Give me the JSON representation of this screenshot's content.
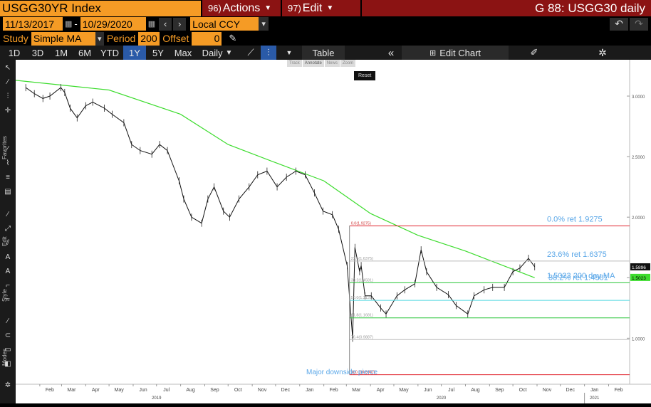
{
  "header": {
    "ticker": "USGG30YR Index",
    "actions_num": "96)",
    "actions": "Actions",
    "edit_num": "97)",
    "edit": "Edit",
    "right_title": "G 88: USGG30 daily"
  },
  "range": {
    "start": "11/13/2017",
    "sep": "-",
    "end": "10/29/2020",
    "currency": "Local CCY"
  },
  "study": {
    "label": "Study",
    "type": "Simple MA",
    "period_label": "Period",
    "period": "200",
    "offset_label": "Offset",
    "offset": "0"
  },
  "toolbar": {
    "periods": [
      "1D",
      "3D",
      "1M",
      "6M",
      "YTD",
      "1Y",
      "5Y",
      "Max"
    ],
    "selected": "1Y",
    "frequency": "Daily",
    "table": "Table",
    "edit_chart": "Edit Chart"
  },
  "mini": {
    "track": "Track",
    "annotate": "Annotate",
    "news": "News",
    "zoom": "Zoom",
    "reset": "Reset"
  },
  "side_labels": {
    "favorites": "Favorites",
    "edit": "Edit",
    "style": "Style",
    "modes": "Modes"
  },
  "colors": {
    "accent": "#f59b25",
    "red_header": "#8b1313",
    "ma": "#3ddc2e",
    "fib_blue": "#5aa7e8",
    "hl_red": "#e0202a"
  },
  "chart_data": {
    "type": "line",
    "y_ticks": [
      "3.0000",
      "2.5000",
      "2.0000",
      "1.5000",
      "1.0000"
    ],
    "ylim": [
      0.62,
      3.3
    ],
    "x_months": [
      "Feb",
      "Mar",
      "Apr",
      "May",
      "Jun",
      "Jul",
      "Aug",
      "Sep",
      "Oct",
      "Nov",
      "Dec",
      "Jan",
      "Feb",
      "Mar",
      "Apr",
      "May",
      "Jun",
      "Jul",
      "Aug",
      "Sep",
      "Oct",
      "Nov",
      "Dec",
      "Jan",
      "Feb"
    ],
    "x_years": [
      "2019",
      "2020",
      "2021"
    ],
    "series": [
      {
        "type": "price",
        "x": [
          "2019-01-14",
          "2019-01-25",
          "2019-02-05",
          "2019-02-14",
          "2019-02-28",
          "2019-03-05",
          "2019-03-12",
          "2019-03-21",
          "2019-04-01",
          "2019-04-10",
          "2019-04-25",
          "2019-05-05",
          "2019-05-20",
          "2019-05-30",
          "2019-06-10",
          "2019-06-25",
          "2019-07-05",
          "2019-07-15",
          "2019-07-30",
          "2019-08-05",
          "2019-08-15",
          "2019-08-28",
          "2019-09-05",
          "2019-09-13",
          "2019-09-25",
          "2019-10-03",
          "2019-10-15",
          "2019-10-28",
          "2019-11-08",
          "2019-11-20",
          "2019-12-03",
          "2019-12-15",
          "2019-12-27",
          "2020-01-08",
          "2020-01-20",
          "2020-01-31",
          "2020-02-12",
          "2020-02-20",
          "2020-03-02",
          "2020-03-09",
          "2020-03-12",
          "2020-03-18",
          "2020-03-20",
          "2020-03-25",
          "2020-04-02",
          "2020-04-14",
          "2020-04-21",
          "2020-05-05",
          "2020-05-15",
          "2020-05-28",
          "2020-06-05",
          "2020-06-12",
          "2020-06-25",
          "2020-07-10",
          "2020-07-20",
          "2020-08-04",
          "2020-08-12",
          "2020-08-25",
          "2020-09-05",
          "2020-09-20",
          "2020-10-01",
          "2020-10-10",
          "2020-10-21",
          "2020-10-29"
        ],
        "values": [
          3.07,
          3.02,
          2.98,
          3.0,
          3.07,
          3.03,
          2.9,
          2.82,
          2.92,
          2.95,
          2.9,
          2.85,
          2.78,
          2.6,
          2.55,
          2.52,
          2.6,
          2.55,
          2.3,
          2.15,
          2.0,
          1.95,
          2.15,
          2.25,
          2.05,
          2.0,
          2.15,
          2.25,
          2.35,
          2.38,
          2.25,
          2.33,
          2.38,
          2.35,
          2.2,
          2.05,
          2.02,
          1.9,
          1.6,
          1.0,
          1.75,
          1.55,
          1.6,
          1.35,
          1.35,
          1.25,
          1.2,
          1.35,
          1.4,
          1.45,
          1.73,
          1.55,
          1.42,
          1.36,
          1.27,
          1.2,
          1.35,
          1.4,
          1.42,
          1.42,
          1.55,
          1.58,
          1.66,
          1.59
        ]
      },
      {
        "type": "ma",
        "name": "200 day MA",
        "x": [
          "2019-01-01",
          "2019-05-01",
          "2019-08-01",
          "2019-10-01",
          "2019-12-01",
          "2020-02-01",
          "2020-04-01",
          "2020-06-01",
          "2020-08-01",
          "2020-10-29"
        ],
        "values": [
          3.13,
          3.05,
          2.85,
          2.6,
          2.45,
          2.3,
          2.03,
          1.85,
          1.72,
          1.5
        ]
      }
    ],
    "fib": [
      {
        "pct": "0.0%",
        "value": 1.9275,
        "label": "0.0% ret 1.9275",
        "small": "0.0(1.9275)"
      },
      {
        "pct": "23.6%",
        "value": 1.6375,
        "label": "23.6% ret 1.6375",
        "small": "23.6(1.6375)"
      },
      {
        "pct": "38.2%",
        "value": 1.4581,
        "label": "38.2% ret 1.4581",
        "small": "38.2(1.4581)"
      },
      {
        "pct": "50.0%",
        "value": 1.3131,
        "small": "50.0(1.3131)"
      },
      {
        "pct": "61.8%",
        "value": 1.1681,
        "small": "61.8(1.1681)"
      },
      {
        "pct": "76.4%",
        "value": 0.9887,
        "small": "76.4(0.9887)"
      },
      {
        "pct": "100.0%",
        "value": 0.6987,
        "small": "100.0(0.6987)"
      }
    ],
    "ma_label": "1.5023 200 day MA",
    "last_tag": "1.5896",
    "ma_tag": "1.5023",
    "annotation": "Major downside pierce"
  }
}
